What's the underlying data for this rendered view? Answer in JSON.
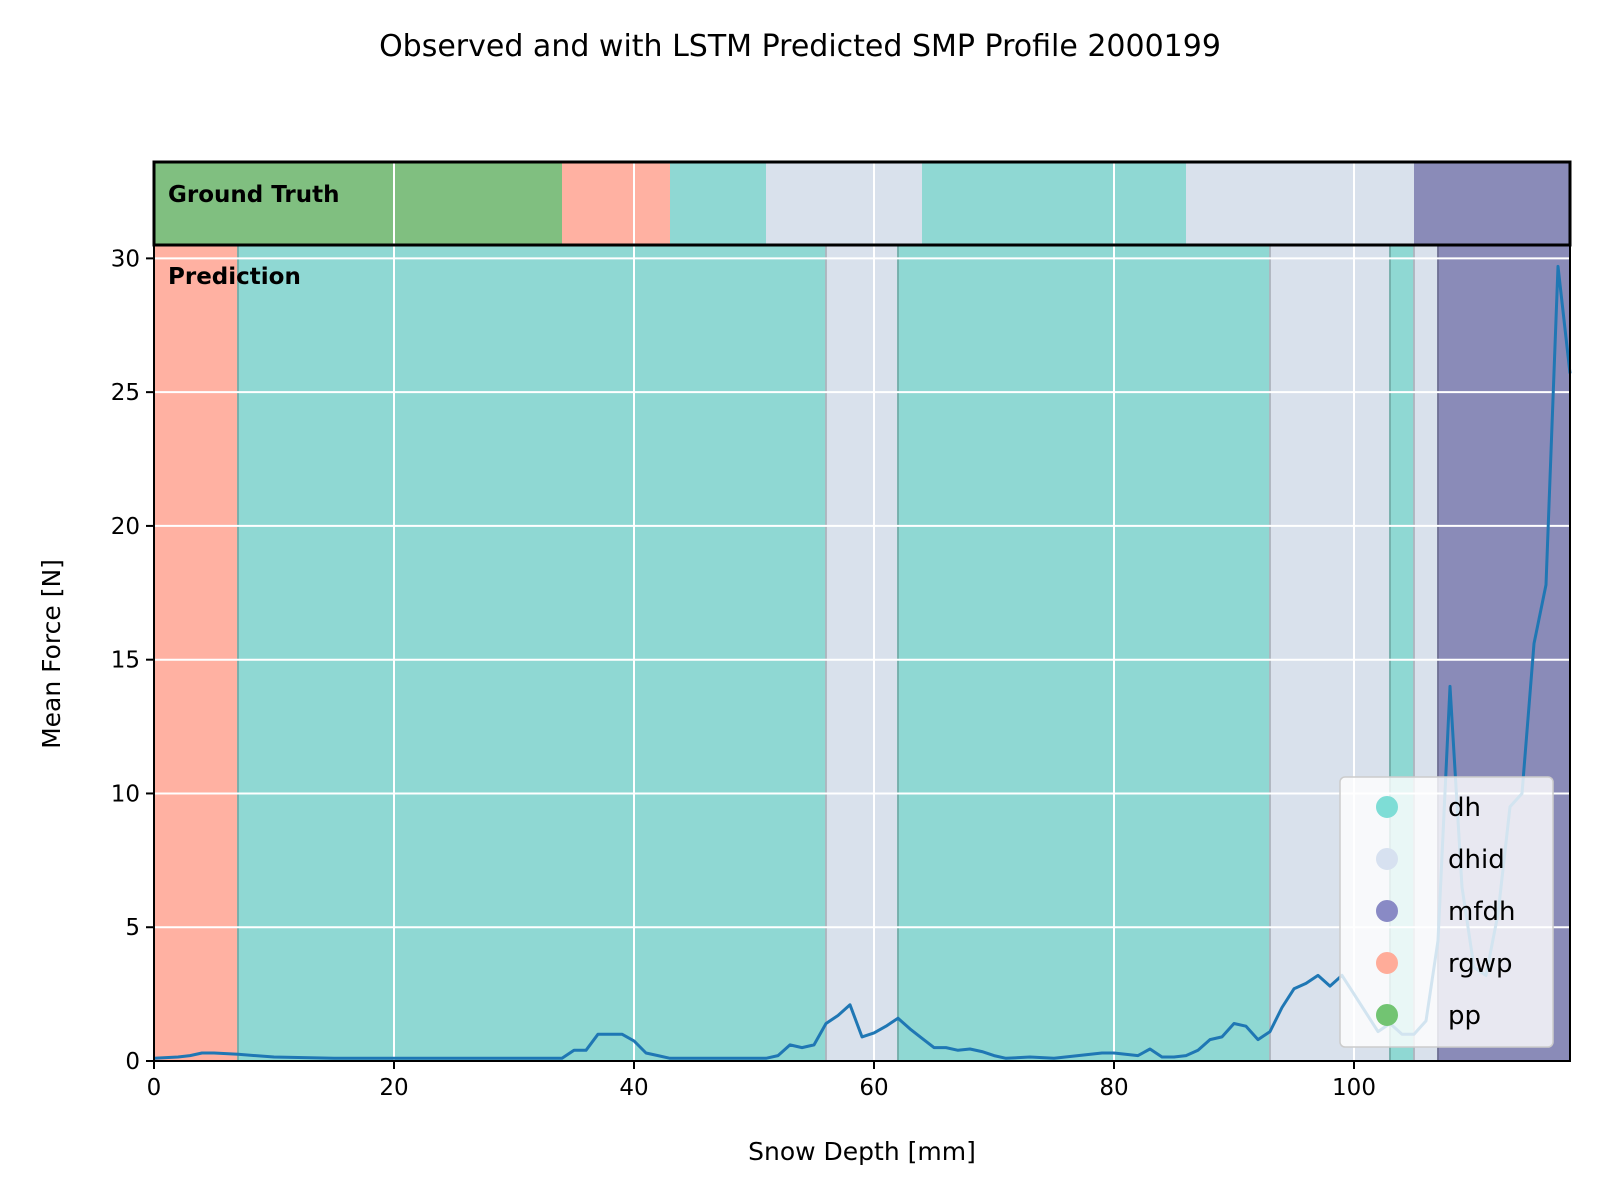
{
  "chart_data": {
    "type": "line",
    "title": "Observed and with LSTM Predicted SMP Profile 2000199",
    "xlabel": "Snow Depth [mm]",
    "ylabel": "Mean Force [N]",
    "xlim": [
      0,
      118
    ],
    "ylim": [
      0,
      30.5
    ],
    "xticks": [
      0,
      20,
      40,
      60,
      80,
      100
    ],
    "yticks": [
      0,
      5,
      10,
      15,
      20,
      25,
      30
    ],
    "grid": true,
    "legend_position": "lower-right",
    "colors": {
      "dh": "#8fd8d3",
      "dhid": "#d9e1ec",
      "mfdh": "#8a8bb8",
      "rgwp": "#ffb1a2",
      "pp": "#80bf80",
      "line": "#1f77b4"
    },
    "legend": [
      {
        "label": "dh",
        "key": "dh"
      },
      {
        "label": "dhid",
        "key": "dhid"
      },
      {
        "label": "mfdh",
        "key": "mfdh"
      },
      {
        "label": "rgwp",
        "key": "rgwp"
      },
      {
        "label": "pp",
        "key": "pp"
      }
    ],
    "ground_truth": {
      "label": "Ground Truth",
      "segments": [
        {
          "start": 0,
          "end": 34,
          "class": "pp"
        },
        {
          "start": 34,
          "end": 43,
          "class": "rgwp"
        },
        {
          "start": 43,
          "end": 51,
          "class": "dh"
        },
        {
          "start": 51,
          "end": 64,
          "class": "dhid"
        },
        {
          "start": 64,
          "end": 86,
          "class": "dh"
        },
        {
          "start": 86,
          "end": 105,
          "class": "dhid"
        },
        {
          "start": 105,
          "end": 118,
          "class": "mfdh"
        }
      ]
    },
    "prediction": {
      "label": "Prediction",
      "segments": [
        {
          "start": 0,
          "end": 7,
          "class": "rgwp"
        },
        {
          "start": 7,
          "end": 56,
          "class": "dh"
        },
        {
          "start": 56,
          "end": 62,
          "class": "dhid"
        },
        {
          "start": 62,
          "end": 93,
          "class": "dh"
        },
        {
          "start": 93,
          "end": 103,
          "class": "dhid"
        },
        {
          "start": 103,
          "end": 105,
          "class": "dh"
        },
        {
          "start": 105,
          "end": 107,
          "class": "dhid"
        },
        {
          "start": 107,
          "end": 118,
          "class": "mfdh"
        }
      ]
    },
    "series": [
      {
        "x": [
          0,
          2,
          3,
          4,
          5,
          7,
          10,
          15,
          20,
          25,
          30,
          34,
          35,
          36,
          37,
          38,
          39,
          40,
          41,
          42,
          43,
          45,
          50,
          51,
          52,
          53,
          54,
          55,
          56,
          57,
          58,
          59,
          60,
          61,
          62,
          63,
          64,
          65,
          66,
          67,
          68,
          69,
          70,
          71,
          73,
          75,
          77,
          79,
          80,
          82,
          83,
          84,
          85,
          86,
          87,
          88,
          89,
          90,
          91,
          92,
          93,
          94,
          95,
          96,
          97,
          98,
          99,
          100,
          101,
          102,
          103,
          104,
          105,
          106,
          107,
          108,
          109,
          110,
          111,
          112,
          113,
          114,
          115,
          116,
          117,
          118
        ],
        "y": [
          0.1,
          0.15,
          0.2,
          0.3,
          0.3,
          0.25,
          0.15,
          0.1,
          0.1,
          0.1,
          0.1,
          0.1,
          0.4,
          0.4,
          1.0,
          1.0,
          1.0,
          0.75,
          0.3,
          0.2,
          0.1,
          0.1,
          0.1,
          0.1,
          0.2,
          0.6,
          0.5,
          0.6,
          1.4,
          1.7,
          2.1,
          0.9,
          1.05,
          1.3,
          1.6,
          1.2,
          0.85,
          0.5,
          0.5,
          0.4,
          0.45,
          0.35,
          0.2,
          0.1,
          0.15,
          0.1,
          0.2,
          0.3,
          0.3,
          0.2,
          0.45,
          0.15,
          0.15,
          0.2,
          0.4,
          0.8,
          0.9,
          1.4,
          1.3,
          0.8,
          1.1,
          2.0,
          2.7,
          2.9,
          3.2,
          2.8,
          3.2,
          2.5,
          1.8,
          1.1,
          1.4,
          1.0,
          1.0,
          1.5,
          4.5,
          14.0,
          6.5,
          3.5,
          3.2,
          5.5,
          9.5,
          10.0,
          15.6,
          17.8,
          29.7,
          25.7
        ]
      }
    ]
  }
}
